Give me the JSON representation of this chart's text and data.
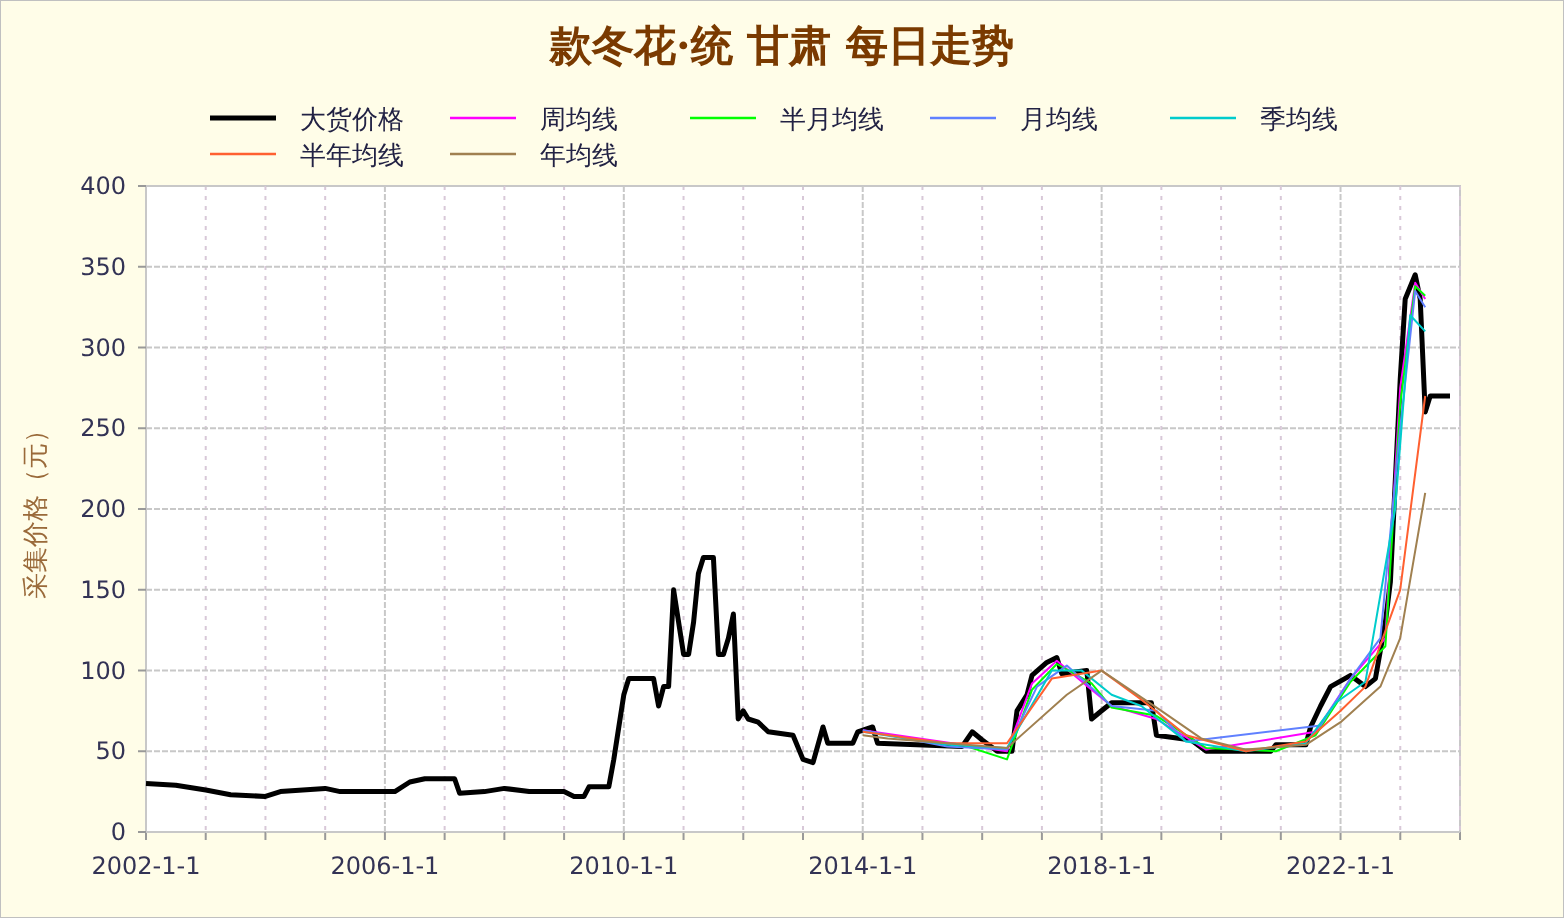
{
  "chart_data": {
    "type": "line",
    "title": "款冬花·统 甘肃 每日走势",
    "ylabel": "采集价格（元）",
    "legend": "top",
    "grid": true,
    "marker": "none",
    "line_style": "solid",
    "xlim": [
      "2002-01-01",
      "2024-01-01"
    ],
    "xticks": [
      {
        "value": "2002-01-01",
        "label": "2002-1-1"
      },
      {
        "value": "2003-01-01",
        "label": null
      },
      {
        "value": "2004-01-01",
        "label": null
      },
      {
        "value": "2005-01-01",
        "label": null
      },
      {
        "value": "2006-01-01",
        "label": "2006-1-1"
      },
      {
        "value": "2007-01-01",
        "label": null
      },
      {
        "value": "2008-01-01",
        "label": null
      },
      {
        "value": "2009-01-01",
        "label": null
      },
      {
        "value": "2010-01-01",
        "label": "2010-1-1"
      },
      {
        "value": "2011-01-01",
        "label": null
      },
      {
        "value": "2012-01-01",
        "label": null
      },
      {
        "value": "2013-01-01",
        "label": null
      },
      {
        "value": "2014-01-01",
        "label": "2014-1-1"
      },
      {
        "value": "2015-01-01",
        "label": null
      },
      {
        "value": "2016-01-01",
        "label": null
      },
      {
        "value": "2017-01-01",
        "label": null
      },
      {
        "value": "2018-01-01",
        "label": "2018-1-1"
      },
      {
        "value": "2019-01-01",
        "label": null
      },
      {
        "value": "2020-01-01",
        "label": null
      },
      {
        "value": "2021-01-01",
        "label": null
      },
      {
        "value": "2022-01-01",
        "label": "2022-1-1"
      },
      {
        "value": "2023-01-01",
        "label": null
      },
      {
        "value": "2024-01-01",
        "label": null
      }
    ],
    "ylim": [
      0,
      400
    ],
    "yticks": [
      0,
      50,
      100,
      150,
      200,
      250,
      300,
      350,
      400
    ],
    "series": [
      {
        "name": "大货价格",
        "color": "#000000",
        "x": [
          "2002-01",
          "2002-07",
          "2003-01",
          "2003-06",
          "2004-01",
          "2004-04",
          "2005-01",
          "2005-04",
          "2006-03",
          "2006-06",
          "2006-09",
          "2007-03",
          "2007-04",
          "2007-09",
          "2008-01",
          "2008-06",
          "2009-01",
          "2009-03",
          "2009-05",
          "2009-06",
          "2009-10",
          "2009-11",
          "2009-12",
          "2010-01",
          "2010-02",
          "2010-07",
          "2010-08",
          "2010-09",
          "2010-10",
          "2010-11",
          "2011-01",
          "2011-02",
          "2011-03",
          "2011-04",
          "2011-05",
          "2011-07",
          "2011-08",
          "2011-09",
          "2011-10",
          "2011-11",
          "2011-12",
          "2012-01",
          "2012-02",
          "2012-04",
          "2012-06",
          "2012-11",
          "2013-01",
          "2013-03",
          "2013-05",
          "2013-06",
          "2013-11",
          "2013-12",
          "2014-03",
          "2014-04",
          "2015-09",
          "2015-11",
          "2016-01",
          "2016-04",
          "2016-07",
          "2016-08",
          "2016-10",
          "2016-11",
          "2017-02",
          "2017-04",
          "2017-05",
          "2017-10",
          "2017-11",
          "2018-01",
          "2018-03",
          "2018-11",
          "2018-12",
          "2019-07",
          "2019-10",
          "2020-11",
          "2020-12",
          "2021-06",
          "2021-07",
          "2021-09",
          "2021-11",
          "2022-03",
          "2022-06",
          "2022-08",
          "2022-10",
          "2022-11",
          "2023-01",
          "2023-02",
          "2023-04",
          "2023-05",
          "2023-06",
          "2023-07",
          "2023-11"
        ],
        "values": [
          30,
          29,
          26,
          23,
          22,
          25,
          27,
          25,
          25,
          31,
          33,
          33,
          24,
          25,
          27,
          25,
          25,
          22,
          22,
          28,
          28,
          45,
          65,
          85,
          95,
          95,
          78,
          90,
          90,
          150,
          110,
          110,
          130,
          160,
          170,
          170,
          110,
          110,
          120,
          135,
          70,
          75,
          70,
          68,
          62,
          60,
          45,
          43,
          65,
          55,
          55,
          62,
          65,
          55,
          53,
          62,
          57,
          50,
          50,
          75,
          85,
          97,
          105,
          108,
          98,
          100,
          70,
          75,
          80,
          80,
          60,
          57,
          50,
          50,
          54,
          54,
          65,
          78,
          90,
          97,
          90,
          95,
          130,
          155,
          280,
          330,
          345,
          330,
          260,
          270,
          270
        ]
      },
      {
        "name": "周均线",
        "color": "#ff00ff",
        "x": [
          "2014-01",
          "2016-06",
          "2016-11",
          "2017-04",
          "2017-11",
          "2018-03",
          "2018-12",
          "2019-10",
          "2021-08",
          "2022-03",
          "2022-10",
          "2023-01",
          "2023-04",
          "2023-06"
        ],
        "values": [
          63,
          50,
          92,
          106,
          88,
          78,
          70,
          51,
          62,
          95,
          120,
          275,
          340,
          330
        ]
      },
      {
        "name": "半月均线",
        "color": "#00ff00",
        "x": [
          "2015-09",
          "2016-06",
          "2016-11",
          "2017-04",
          "2017-11",
          "2018-03",
          "2018-12",
          "2019-10",
          "2020-12",
          "2021-08",
          "2022-03",
          "2022-10",
          "2023-01",
          "2023-04",
          "2023-06"
        ],
        "values": [
          54,
          45,
          88,
          104,
          92,
          77,
          72,
          52,
          50,
          60,
          93,
          115,
          265,
          338,
          332
        ]
      },
      {
        "name": "月均线",
        "color": "#6080ff",
        "x": [
          "2014-01",
          "2015-06",
          "2016-06",
          "2016-12",
          "2017-06",
          "2018-03",
          "2018-12",
          "2019-06",
          "2021-09",
          "2022-03",
          "2022-09",
          "2023-01",
          "2023-04",
          "2023-06"
        ],
        "values": [
          63,
          53,
          51,
          90,
          103,
          78,
          75,
          56,
          66,
          95,
          120,
          250,
          335,
          325
        ]
      },
      {
        "name": "季均线",
        "color": "#00cccc",
        "x": [
          "2014-01",
          "2015-06",
          "2016-06",
          "2017-03",
          "2017-09",
          "2018-03",
          "2018-09",
          "2019-06",
          "2020-06",
          "2021-06",
          "2021-12",
          "2022-06",
          "2022-12",
          "2023-03",
          "2023-06"
        ],
        "values": [
          62,
          54,
          52,
          100,
          100,
          85,
          78,
          56,
          50,
          55,
          80,
          93,
          200,
          320,
          310
        ]
      },
      {
        "name": "半年均线",
        "color": "#ff6030",
        "x": [
          "2014-01",
          "2015-06",
          "2016-06",
          "2017-03",
          "2018-01",
          "2018-09",
          "2019-06",
          "2020-06",
          "2021-06",
          "2022-01",
          "2022-06",
          "2023-01",
          "2023-06"
        ],
        "values": [
          62,
          55,
          55,
          95,
          100,
          82,
          60,
          50,
          56,
          75,
          90,
          150,
          270
        ]
      },
      {
        "name": "年均线",
        "color": "#a08050",
        "x": [
          "2014-01",
          "2014-06",
          "2015-06",
          "2016-06",
          "2017-06",
          "2018-01",
          "2019-01",
          "2019-09",
          "2020-06",
          "2021-06",
          "2022-01",
          "2022-09",
          "2023-01",
          "2023-06"
        ],
        "values": [
          60,
          58,
          55,
          52,
          85,
          100,
          75,
          58,
          51,
          54,
          68,
          90,
          120,
          210
        ]
      }
    ]
  }
}
